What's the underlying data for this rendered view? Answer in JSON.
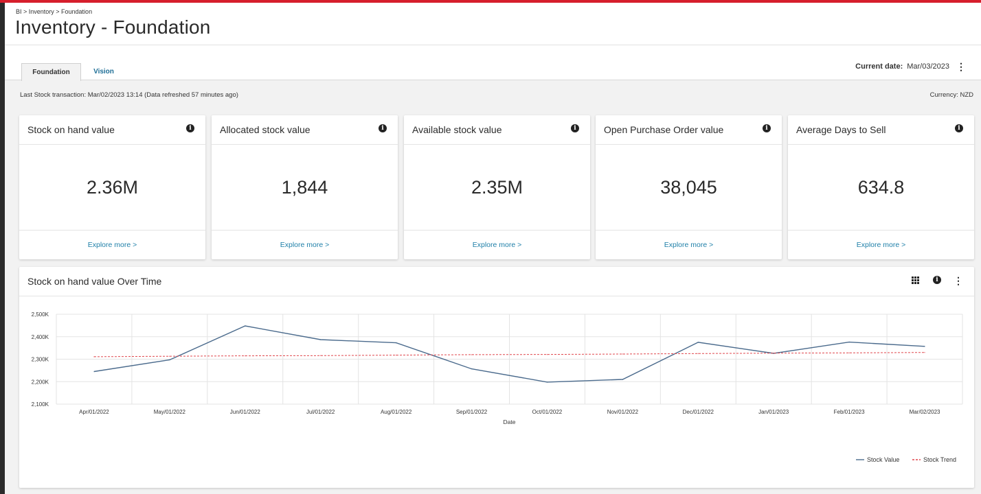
{
  "header": {
    "breadcrumb": "BI > Inventory > Foundation",
    "title": "Inventory - Foundation"
  },
  "tabs": [
    {
      "label": "Foundation",
      "active": true
    },
    {
      "label": "Vision",
      "active": false
    }
  ],
  "current_date": {
    "label": "Current date:",
    "value": "Mar/03/2023"
  },
  "meta": {
    "last_transaction": "Last Stock transaction: Mar/02/2023 13:14 (Data refreshed 57 minutes ago)",
    "currency": "Currency:  NZD"
  },
  "kpis": [
    {
      "title": "Stock on hand value",
      "value": "2.36M",
      "link": "Explore more >"
    },
    {
      "title": "Allocated stock value",
      "value": "1,844",
      "link": "Explore more >"
    },
    {
      "title": "Available stock value",
      "value": "2.35M",
      "link": "Explore more >"
    },
    {
      "title": "Open Purchase Order value",
      "value": "38,045",
      "link": "Explore more >"
    },
    {
      "title": "Average Days to Sell",
      "value": "634.8",
      "link": "Explore more >"
    }
  ],
  "colors": {
    "accent": "#d61f2c",
    "link": "#1e7fa8",
    "series_line": "#4a6a8c",
    "trend_line": "#e0454b"
  },
  "icons": [
    "info-icon",
    "grid-icon",
    "kebab-menu-icon"
  ],
  "chart_data": {
    "type": "line",
    "title": "Stock on hand value Over Time",
    "xlabel": "Date",
    "ylabel": "",
    "x": [
      "Apr/01/2022",
      "May/01/2022",
      "Jun/01/2022",
      "Jul/01/2022",
      "Aug/01/2022",
      "Sep/01/2022",
      "Oct/01/2022",
      "Nov/01/2022",
      "Dec/01/2022",
      "Jan/01/2023",
      "Feb/01/2023",
      "Mar/02/2023"
    ],
    "ylim": [
      2100,
      2500
    ],
    "yticks": [
      2100,
      2200,
      2300,
      2400,
      2500
    ],
    "ytick_labels": [
      "2,100K",
      "2,200K",
      "2,300K",
      "2,400K",
      "2,500K"
    ],
    "series": [
      {
        "name": "Stock Value",
        "style": "solid",
        "values": [
          2245,
          2297,
          2448,
          2387,
          2373,
          2257,
          2198,
          2210,
          2375,
          2326,
          2376,
          2357
        ]
      },
      {
        "name": "Stock Trend",
        "style": "dashed",
        "values": [
          2311,
          2313,
          2315,
          2316,
          2318,
          2320,
          2321,
          2323,
          2325,
          2327,
          2328,
          2330
        ]
      }
    ],
    "grid": true,
    "legend": "bottom-right"
  }
}
